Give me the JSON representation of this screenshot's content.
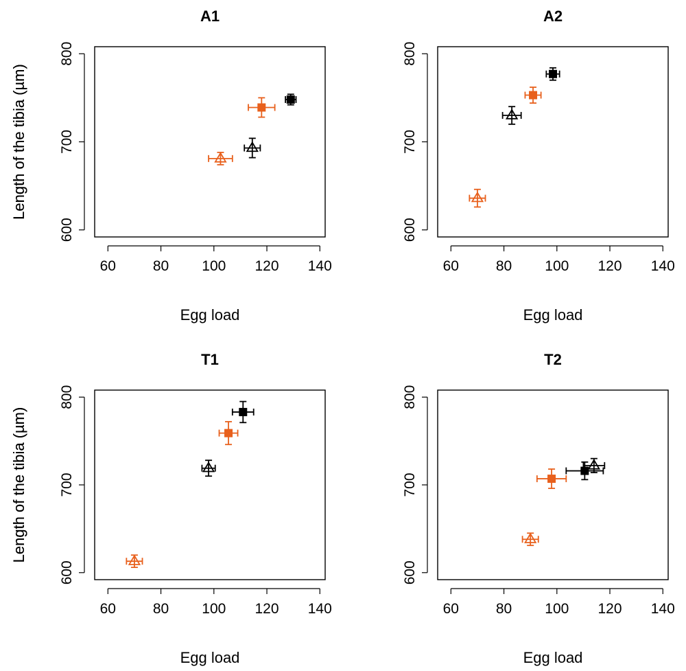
{
  "colors": {
    "orange": "#e8601c",
    "black": "#000000"
  },
  "chart_data": [
    {
      "type": "scatter",
      "title": "A1",
      "xlabel": "Egg load",
      "ylabel": "Length of the tibia (µm)",
      "xlim": [
        55,
        142
      ],
      "ylim": [
        592,
        808
      ],
      "xticks": [
        60,
        80,
        100,
        120,
        140
      ],
      "yticks": [
        600,
        700,
        800
      ],
      "points": [
        {
          "marker": "square",
          "color": "black",
          "x": 129.0,
          "y": 748,
          "xerr": 2.0,
          "yerr": 6
        },
        {
          "marker": "square",
          "color": "orange",
          "x": 118.0,
          "y": 739,
          "xerr": 5.0,
          "yerr": 11
        },
        {
          "marker": "triangle",
          "color": "black",
          "x": 114.5,
          "y": 693,
          "xerr": 3.0,
          "yerr": 11
        },
        {
          "marker": "triangle",
          "color": "orange",
          "x": 102.5,
          "y": 681,
          "xerr": 4.5,
          "yerr": 7
        }
      ]
    },
    {
      "type": "scatter",
      "title": "A2",
      "xlabel": "Egg load",
      "ylabel": "Length of the tibia (µm)",
      "xlim": [
        55,
        142
      ],
      "ylim": [
        592,
        808
      ],
      "xticks": [
        60,
        80,
        100,
        120,
        140
      ],
      "yticks": [
        600,
        700,
        800
      ],
      "points": [
        {
          "marker": "square",
          "color": "black",
          "x": 98.5,
          "y": 777,
          "xerr": 2.5,
          "yerr": 7
        },
        {
          "marker": "square",
          "color": "orange",
          "x": 91.0,
          "y": 753,
          "xerr": 3.0,
          "yerr": 9
        },
        {
          "marker": "triangle",
          "color": "black",
          "x": 83.0,
          "y": 730,
          "xerr": 3.5,
          "yerr": 10
        },
        {
          "marker": "triangle",
          "color": "orange",
          "x": 70.0,
          "y": 636,
          "xerr": 3.0,
          "yerr": 10
        }
      ]
    },
    {
      "type": "scatter",
      "title": "T1",
      "xlabel": "Egg load",
      "ylabel": "Length of the tibia (µm)",
      "xlim": [
        55,
        142
      ],
      "ylim": [
        592,
        808
      ],
      "xticks": [
        60,
        80,
        100,
        120,
        140
      ],
      "yticks": [
        600,
        700,
        800
      ],
      "points": [
        {
          "marker": "square",
          "color": "black",
          "x": 111.0,
          "y": 783,
          "xerr": 4.0,
          "yerr": 12
        },
        {
          "marker": "square",
          "color": "orange",
          "x": 105.5,
          "y": 759,
          "xerr": 3.5,
          "yerr": 13
        },
        {
          "marker": "triangle",
          "color": "black",
          "x": 98.0,
          "y": 719,
          "xerr": 2.5,
          "yerr": 9
        },
        {
          "marker": "triangle",
          "color": "orange",
          "x": 70.0,
          "y": 613,
          "xerr": 3.0,
          "yerr": 7
        }
      ]
    },
    {
      "type": "scatter",
      "title": "T2",
      "xlabel": "Egg load",
      "ylabel": "Length of the tibia (µm)",
      "xlim": [
        55,
        142
      ],
      "ylim": [
        592,
        808
      ],
      "xticks": [
        60,
        80,
        100,
        120,
        140
      ],
      "yticks": [
        600,
        700,
        800
      ],
      "points": [
        {
          "marker": "square",
          "color": "black",
          "x": 110.5,
          "y": 716,
          "xerr": 7.0,
          "yerr": 10
        },
        {
          "marker": "square",
          "color": "orange",
          "x": 98.0,
          "y": 707,
          "xerr": 5.5,
          "yerr": 11
        },
        {
          "marker": "triangle",
          "color": "black",
          "x": 114.0,
          "y": 722,
          "xerr": 4.0,
          "yerr": 8
        },
        {
          "marker": "triangle",
          "color": "orange",
          "x": 90.0,
          "y": 638,
          "xerr": 3.0,
          "yerr": 7
        }
      ]
    }
  ]
}
